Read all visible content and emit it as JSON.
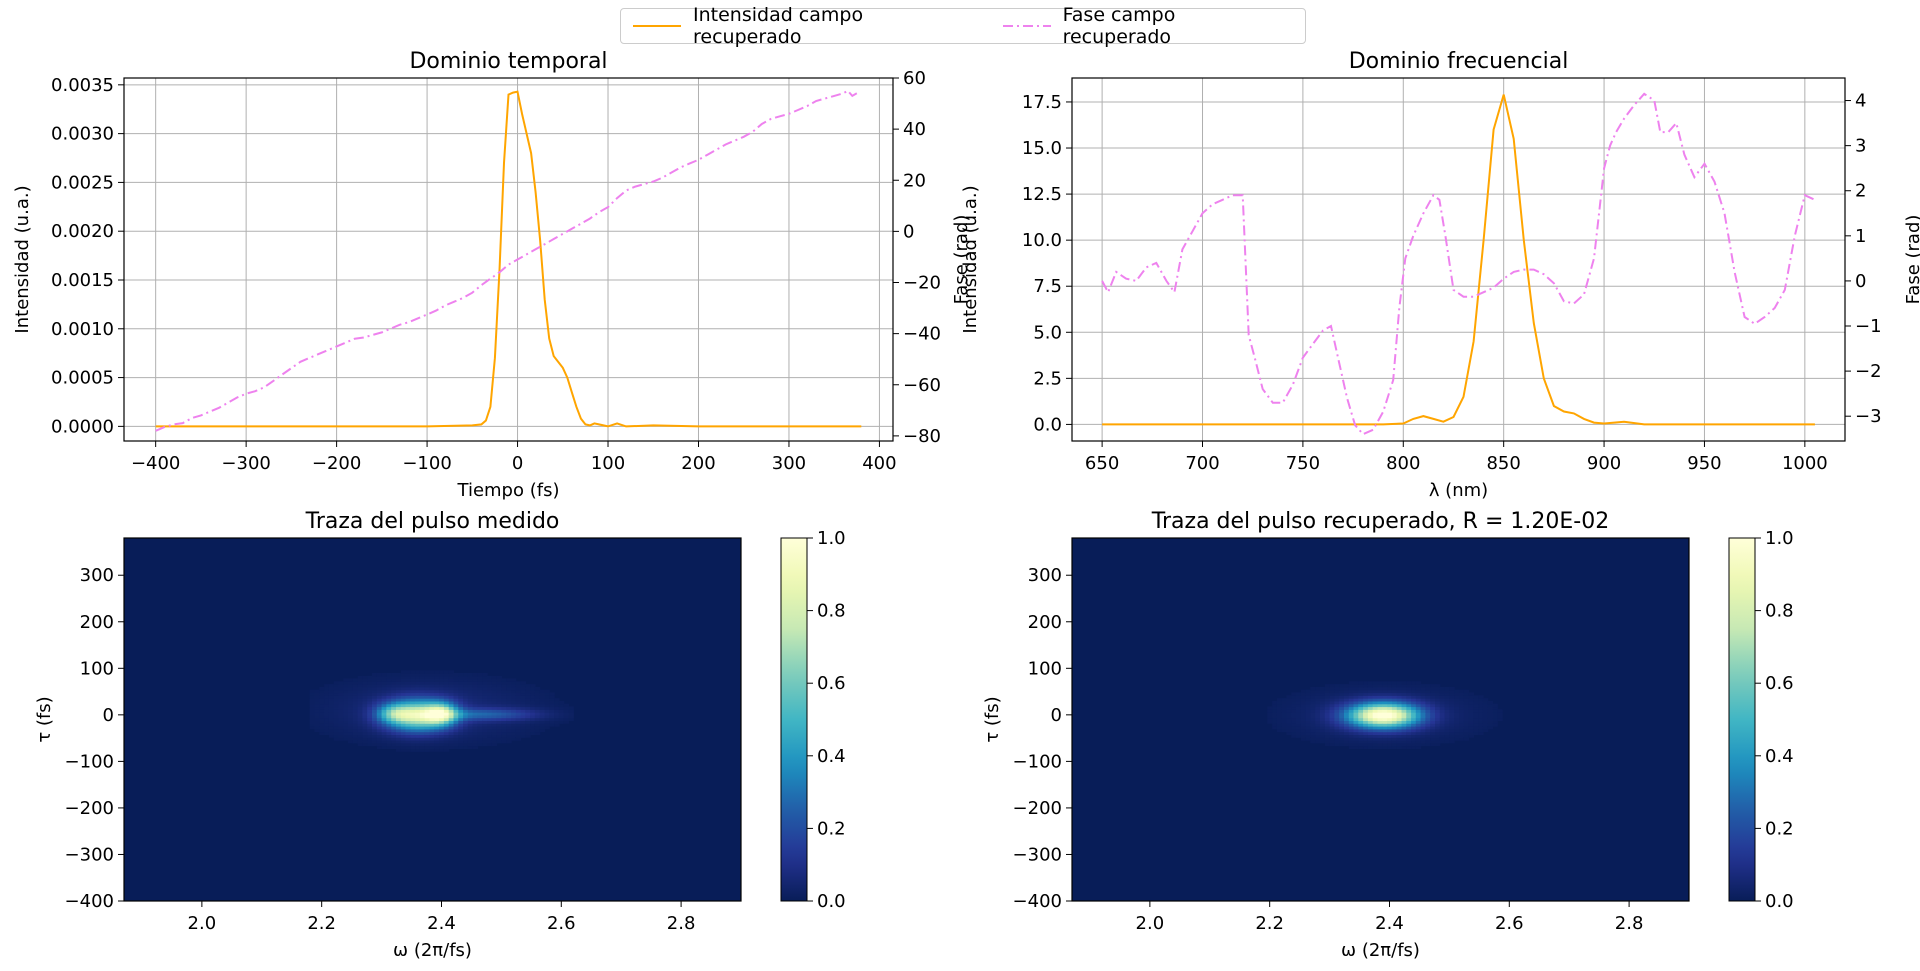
{
  "legend": {
    "entries": [
      {
        "label": "Intensidad campo recuperado",
        "color": "#ffa500",
        "style": "solid"
      },
      {
        "label": "Fase campo recuperado",
        "color": "#ee82ee",
        "style": "dashdot"
      }
    ],
    "placement": "top-center"
  },
  "chart_data": [
    {
      "type": "line",
      "title": "Dominio temporal",
      "xlabel": "Tiempo (fs)",
      "ylabel": "Intensidad (u.a.)",
      "y2label": "Fase (rad)",
      "xlim": [
        -435,
        415
      ],
      "ylim": [
        -0.00015,
        0.00357
      ],
      "y2lim": [
        -82,
        60
      ],
      "xticks": [
        -400,
        -300,
        -200,
        -100,
        0,
        100,
        200,
        300,
        400
      ],
      "xtick_labels": [
        "−400",
        "−300",
        "−200",
        "−100",
        "0",
        "100",
        "200",
        "300",
        "400"
      ],
      "yticks": [
        0,
        0.0005,
        0.001,
        0.0015,
        0.002,
        0.0025,
        0.003,
        0.0035
      ],
      "ytick_labels": [
        "0.0000",
        "0.0005",
        "0.0010",
        "0.0015",
        "0.0020",
        "0.0025",
        "0.0030",
        "0.0035"
      ],
      "y2ticks": [
        -80,
        -60,
        -40,
        -20,
        0,
        20,
        40,
        60
      ],
      "y2tick_labels": [
        "−80",
        "−60",
        "−40",
        "−20",
        "0",
        "20",
        "40",
        "60"
      ],
      "grid": true,
      "series": [
        {
          "axis": "left",
          "color": "#ffa500",
          "style": "solid",
          "x": [
            -400,
            -100,
            -50,
            -40,
            -35,
            -30,
            -25,
            -20,
            -15,
            -10,
            -5,
            0,
            5,
            10,
            15,
            20,
            25,
            30,
            35,
            40,
            45,
            50,
            55,
            60,
            65,
            70,
            75,
            80,
            85,
            90,
            95,
            100,
            110,
            120,
            150,
            200,
            300,
            380
          ],
          "y": [
            0,
            0,
            1e-05,
            2e-05,
            6e-05,
            0.0002,
            0.0007,
            0.0016,
            0.0027,
            0.0034,
            0.00342,
            0.00343,
            0.0032,
            0.003,
            0.0028,
            0.0024,
            0.0019,
            0.0013,
            0.0009,
            0.00072,
            0.00066,
            0.0006,
            0.0005,
            0.00035,
            0.0002,
            8e-05,
            2e-05,
            1e-05,
            3e-05,
            2e-05,
            1e-05,
            0,
            3e-05,
            0,
            1e-05,
            0,
            0,
            0
          ]
        },
        {
          "axis": "right",
          "color": "#ee82ee",
          "style": "dashdot",
          "x": [
            -400,
            -390,
            -380,
            -370,
            -360,
            -350,
            -340,
            -330,
            -320,
            -310,
            -300,
            -290,
            -280,
            -270,
            -260,
            -250,
            -240,
            -230,
            -220,
            -210,
            -200,
            -190,
            -180,
            -170,
            -160,
            -150,
            -140,
            -130,
            -120,
            -110,
            -100,
            -90,
            -80,
            -70,
            -60,
            -50,
            -40,
            -30,
            -20,
            -10,
            0,
            10,
            20,
            30,
            40,
            50,
            60,
            70,
            80,
            90,
            100,
            110,
            120,
            130,
            140,
            150,
            160,
            170,
            180,
            190,
            200,
            210,
            220,
            230,
            240,
            250,
            260,
            270,
            280,
            290,
            300,
            310,
            320,
            330,
            340,
            350,
            360,
            365,
            370,
            375
          ],
          "y": [
            -78,
            -76.5,
            -75.5,
            -75,
            -73,
            -72,
            -70.5,
            -69,
            -67,
            -65,
            -63.5,
            -62.5,
            -61,
            -58.5,
            -56,
            -53.5,
            -51,
            -49.5,
            -48,
            -46.5,
            -45,
            -43.5,
            -42,
            -41.5,
            -40.5,
            -39.5,
            -38,
            -36.5,
            -35.5,
            -34,
            -32.5,
            -31,
            -29,
            -27.5,
            -26,
            -24,
            -21,
            -18.5,
            -16,
            -13,
            -11,
            -9,
            -7,
            -5,
            -3,
            -1,
            1,
            3,
            5,
            7.5,
            9.5,
            13,
            16,
            17.5,
            18.5,
            19.5,
            21,
            23,
            25,
            26.5,
            28,
            30,
            32,
            34,
            35.5,
            37,
            39,
            42,
            44,
            45,
            46,
            47.5,
            49,
            51,
            52,
            53,
            54,
            55,
            53,
            54
          ]
        }
      ]
    },
    {
      "type": "line",
      "title": "Dominio frecuencial",
      "xlabel": "λ (nm)",
      "ylabel": "Intensidad (u.a.)",
      "y2label": "Fase (rad)",
      "xlim": [
        635,
        1020
      ],
      "ylim": [
        -0.9,
        18.8
      ],
      "y2lim": [
        -3.55,
        4.5
      ],
      "xticks": [
        650,
        700,
        750,
        800,
        850,
        900,
        950,
        1000
      ],
      "xtick_labels": [
        "650",
        "700",
        "750",
        "800",
        "850",
        "900",
        "950",
        "1000"
      ],
      "yticks": [
        0,
        2.5,
        5,
        7.5,
        10,
        12.5,
        15,
        17.5
      ],
      "ytick_labels": [
        "0.0",
        "2.5",
        "5.0",
        "7.5",
        "10.0",
        "12.5",
        "15.0",
        "17.5"
      ],
      "y2ticks": [
        -3,
        -2,
        -1,
        0,
        1,
        2,
        3,
        4
      ],
      "y2tick_labels": [
        "−3",
        "−2",
        "−1",
        "0",
        "1",
        "2",
        "3",
        "4"
      ],
      "grid": true,
      "series": [
        {
          "axis": "left",
          "color": "#ffa500",
          "style": "solid",
          "x": [
            650,
            790,
            800,
            805,
            810,
            815,
            820,
            825,
            830,
            835,
            840,
            845,
            850,
            855,
            860,
            865,
            870,
            875,
            880,
            885,
            890,
            895,
            900,
            910,
            920,
            1005
          ],
          "y": [
            0,
            0,
            0.05,
            0.3,
            0.45,
            0.3,
            0.15,
            0.4,
            1.5,
            4.5,
            10,
            16,
            17.9,
            15.5,
            10,
            5.5,
            2.5,
            1,
            0.7,
            0.6,
            0.3,
            0.1,
            0.05,
            0.15,
            0,
            0
          ]
        },
        {
          "axis": "right",
          "color": "#ee82ee",
          "style": "dashdot",
          "x": [
            650,
            653,
            657,
            662,
            667,
            672,
            677,
            682,
            686,
            690,
            695,
            700,
            705,
            710,
            715,
            720,
            723,
            726,
            730,
            735,
            740,
            745,
            750,
            755,
            760,
            764,
            768,
            772,
            776,
            780,
            785,
            790,
            795,
            798,
            801,
            805,
            810,
            815,
            818,
            821,
            825,
            830,
            835,
            840,
            845,
            850,
            855,
            860,
            865,
            870,
            875,
            880,
            885,
            890,
            895,
            900,
            903,
            906,
            910,
            915,
            920,
            925,
            928,
            932,
            936,
            940,
            945,
            950,
            955,
            960,
            965,
            970,
            975,
            980,
            985,
            990,
            995,
            1000,
            1005
          ],
          "y": [
            0,
            -0.25,
            0.2,
            0.05,
            0,
            0.3,
            0.4,
            0,
            -0.25,
            0.7,
            1.1,
            1.5,
            1.7,
            1.8,
            1.9,
            1.9,
            -1.2,
            -1.7,
            -2.4,
            -2.7,
            -2.7,
            -2.3,
            -1.7,
            -1.4,
            -1.1,
            -1,
            -1.8,
            -2.6,
            -3.2,
            -3.4,
            -3.3,
            -2.9,
            -2.2,
            -0.6,
            0.5,
            1.0,
            1.5,
            1.9,
            1.8,
            1.0,
            -0.2,
            -0.35,
            -0.35,
            -0.25,
            -0.15,
            0.05,
            0.2,
            0.25,
            0.25,
            0.15,
            -0.05,
            -0.45,
            -0.5,
            -0.3,
            0.5,
            2.5,
            3.0,
            3.3,
            3.6,
            3.9,
            4.15,
            4.0,
            3.3,
            3.3,
            3.5,
            2.8,
            2.3,
            2.6,
            2.2,
            1.5,
            0.2,
            -0.8,
            -0.95,
            -0.8,
            -0.6,
            -0.2,
            1.0,
            1.9,
            1.8
          ]
        }
      ]
    },
    {
      "type": "heatmap",
      "title": "Traza del pulso medido",
      "xlabel": "ω (2π/fs)",
      "ylabel": "τ (fs)",
      "xlim": [
        1.87,
        2.9
      ],
      "ylim": [
        -400,
        380
      ],
      "xticks": [
        2.0,
        2.2,
        2.4,
        2.6,
        2.8
      ],
      "xtick_labels": [
        "2.0",
        "2.2",
        "2.4",
        "2.6",
        "2.8"
      ],
      "yticks": [
        -400,
        -300,
        -200,
        -100,
        0,
        100,
        200,
        300
      ],
      "ytick_labels": [
        "−400",
        "−300",
        "−200",
        "−100",
        "0",
        "100",
        "200",
        "300"
      ],
      "colorbar": {
        "min": 0,
        "max": 1,
        "ticks": [
          "0.0",
          "0.2",
          "0.4",
          "0.6",
          "0.8",
          "1.0"
        ],
        "colormap": "YlGnBu_r"
      },
      "blobs": [
        {
          "omega": 2.36,
          "tau": 0,
          "sigma_omega": 0.035,
          "sigma_tau": 22,
          "amp": 0.75
        },
        {
          "omega": 2.4,
          "tau": 3,
          "sigma_omega": 0.018,
          "sigma_tau": 16,
          "amp": 0.55
        },
        {
          "omega": 2.32,
          "tau": 4,
          "sigma_omega": 0.02,
          "sigma_tau": 14,
          "amp": 0.3
        },
        {
          "omega": 2.47,
          "tau": 2,
          "sigma_omega": 0.06,
          "sigma_tau": 9,
          "amp": 0.22
        },
        {
          "omega": 2.38,
          "tau": 10,
          "sigma_omega": 0.12,
          "sigma_tau": 45,
          "amp": 0.07
        }
      ]
    },
    {
      "type": "heatmap",
      "title": "Traza del pulso recuperado, R = 1.20E-02",
      "xlabel": "ω (2π/fs)",
      "ylabel": "τ (fs)",
      "xlim": [
        1.87,
        2.9
      ],
      "ylim": [
        -400,
        380
      ],
      "xticks": [
        2.0,
        2.2,
        2.4,
        2.6,
        2.8
      ],
      "xtick_labels": [
        "2.0",
        "2.2",
        "2.4",
        "2.6",
        "2.8"
      ],
      "yticks": [
        -400,
        -300,
        -200,
        -100,
        0,
        100,
        200,
        300
      ],
      "ytick_labels": [
        "−400",
        "−300",
        "−200",
        "−100",
        "0",
        "100",
        "200",
        "300"
      ],
      "colorbar": {
        "min": 0,
        "max": 1,
        "ticks": [
          "0.0",
          "0.2",
          "0.4",
          "0.6",
          "0.8",
          "1.0"
        ],
        "colormap": "YlGnBu_r"
      },
      "blobs": [
        {
          "omega": 2.39,
          "tau": 0,
          "sigma_omega": 0.04,
          "sigma_tau": 18,
          "amp": 1.0
        },
        {
          "omega": 2.39,
          "tau": 0,
          "sigma_omega": 0.11,
          "sigma_tau": 40,
          "amp": 0.06
        }
      ]
    }
  ]
}
